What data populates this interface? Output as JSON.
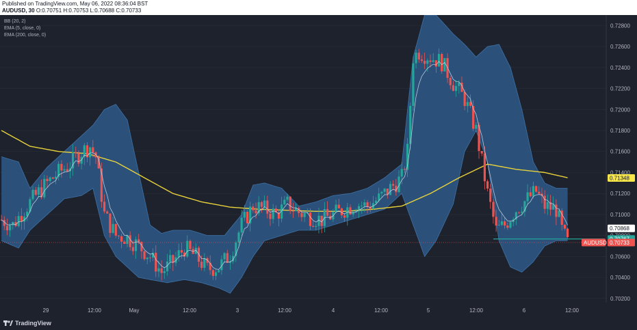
{
  "header": {
    "published": "Published on TradingView.com, May 06, 2022 08:36:04 BST",
    "symbol": "AUDUSD, 30",
    "ohlc": "O:0.70751 H:0.70753 L:0.70688 C:0.70733"
  },
  "indicators": [
    "BB (20, 2)",
    "EMA (5, close, 0)",
    "EMA (200, close, 0)"
  ],
  "footer": {
    "brand": "TradingView"
  },
  "colors": {
    "background": "#1e222d",
    "band": "#2f5e8e",
    "up": "#26a69a",
    "down": "#ef5350",
    "ema200": "#e8d23c",
    "ema5": "#c9d4e4",
    "tag_last": "#ef5350",
    "tag_ema200": "#f7e64a",
    "tag_green": "#26a69a"
  },
  "chart_data": {
    "type": "candlestick",
    "symbol": "AUDUSD",
    "timeframe": "30",
    "ylim": [
      0.7016,
      0.729
    ],
    "y_ticks": [
      "0.72800",
      "0.72600",
      "0.72400",
      "0.72200",
      "0.72000",
      "0.71800",
      "0.71600",
      "0.71400",
      "0.71200",
      "0.71000",
      "0.70800",
      "0.70600",
      "0.70400",
      "0.70200"
    ],
    "x_ticks": [
      "29",
      "12:00",
      "May",
      "12:00",
      "3",
      "12:00",
      "4",
      "12:00",
      "5",
      "12:00",
      "6",
      "12:00"
    ],
    "price_tags": [
      {
        "value": 0.71348,
        "label": "0.71348",
        "kind": "ema200"
      },
      {
        "value": 0.70868,
        "label": "0.70868",
        "kind": "ema5"
      },
      {
        "value": 0.70767,
        "label": "0.70767",
        "kind": "green"
      },
      {
        "value": 0.70733,
        "label": "0.70733",
        "kind": "last"
      }
    ],
    "last_label": "AUDUSD",
    "close_path": [
      [
        0,
        0.7095
      ],
      [
        4,
        0.709
      ],
      [
        8,
        0.7105
      ],
      [
        12,
        0.7118
      ],
      [
        16,
        0.713
      ],
      [
        20,
        0.714
      ],
      [
        24,
        0.7148
      ],
      [
        28,
        0.716
      ],
      [
        31,
        0.7165
      ],
      [
        33,
        0.7155
      ],
      [
        36,
        0.71
      ],
      [
        40,
        0.708
      ],
      [
        44,
        0.7078
      ],
      [
        48,
        0.707
      ],
      [
        52,
        0.706
      ],
      [
        56,
        0.7045
      ],
      [
        60,
        0.7055
      ],
      [
        64,
        0.7068
      ],
      [
        68,
        0.706
      ],
      [
        72,
        0.7048
      ],
      [
        76,
        0.705
      ],
      [
        80,
        0.7062
      ],
      [
        84,
        0.709
      ],
      [
        88,
        0.7108
      ],
      [
        92,
        0.7105
      ],
      [
        96,
        0.71
      ],
      [
        100,
        0.711
      ],
      [
        104,
        0.7102
      ],
      [
        108,
        0.7098
      ],
      [
        112,
        0.7095
      ],
      [
        116,
        0.71
      ],
      [
        120,
        0.7105
      ],
      [
        124,
        0.711
      ],
      [
        128,
        0.7108
      ],
      [
        132,
        0.7115
      ],
      [
        136,
        0.7125
      ],
      [
        140,
        0.7135
      ],
      [
        142,
        0.716
      ],
      [
        144,
        0.725
      ],
      [
        146,
        0.7255
      ],
      [
        150,
        0.725
      ],
      [
        154,
        0.7245
      ],
      [
        158,
        0.7225
      ],
      [
        162,
        0.721
      ],
      [
        166,
        0.718
      ],
      [
        170,
        0.712
      ],
      [
        173,
        0.7085
      ],
      [
        176,
        0.709
      ],
      [
        180,
        0.7105
      ],
      [
        184,
        0.7115
      ],
      [
        187,
        0.7122
      ],
      [
        190,
        0.7108
      ],
      [
        194,
        0.7105
      ],
      [
        196,
        0.7085
      ],
      [
        198,
        0.7073
      ]
    ],
    "ema200_path": [
      [
        0,
        0.718
      ],
      [
        10,
        0.7165
      ],
      [
        20,
        0.716
      ],
      [
        30,
        0.7158
      ],
      [
        40,
        0.715
      ],
      [
        50,
        0.7135
      ],
      [
        60,
        0.712
      ],
      [
        70,
        0.7112
      ],
      [
        80,
        0.7107
      ],
      [
        90,
        0.7105
      ],
      [
        100,
        0.7104
      ],
      [
        110,
        0.7103
      ],
      [
        120,
        0.7103
      ],
      [
        130,
        0.7105
      ],
      [
        140,
        0.7108
      ],
      [
        150,
        0.712
      ],
      [
        160,
        0.7135
      ],
      [
        170,
        0.7148
      ],
      [
        180,
        0.7143
      ],
      [
        190,
        0.714
      ],
      [
        198,
        0.7135
      ]
    ],
    "bb_upper_path": [
      [
        0,
        0.7155
      ],
      [
        6,
        0.715
      ],
      [
        10,
        0.7125
      ],
      [
        16,
        0.7145
      ],
      [
        22,
        0.716
      ],
      [
        28,
        0.7175
      ],
      [
        32,
        0.7185
      ],
      [
        36,
        0.72
      ],
      [
        40,
        0.7205
      ],
      [
        44,
        0.719
      ],
      [
        48,
        0.714
      ],
      [
        52,
        0.709
      ],
      [
        56,
        0.7082
      ],
      [
        60,
        0.7085
      ],
      [
        66,
        0.7085
      ],
      [
        72,
        0.708
      ],
      [
        78,
        0.708
      ],
      [
        84,
        0.71
      ],
      [
        88,
        0.7128
      ],
      [
        92,
        0.713
      ],
      [
        98,
        0.7125
      ],
      [
        104,
        0.7108
      ],
      [
        110,
        0.7112
      ],
      [
        116,
        0.7118
      ],
      [
        122,
        0.712
      ],
      [
        128,
        0.7125
      ],
      [
        134,
        0.7135
      ],
      [
        140,
        0.7148
      ],
      [
        144,
        0.725
      ],
      [
        148,
        0.729
      ],
      [
        152,
        0.729
      ],
      [
        158,
        0.7272
      ],
      [
        162,
        0.7262
      ],
      [
        166,
        0.725
      ],
      [
        170,
        0.726
      ],
      [
        174,
        0.7262
      ],
      [
        178,
        0.724
      ],
      [
        182,
        0.72
      ],
      [
        186,
        0.715
      ],
      [
        190,
        0.713
      ],
      [
        194,
        0.7125
      ],
      [
        198,
        0.7125
      ]
    ],
    "bb_lower_path": [
      [
        0,
        0.7075
      ],
      [
        6,
        0.7068
      ],
      [
        10,
        0.7085
      ],
      [
        16,
        0.71
      ],
      [
        22,
        0.7115
      ],
      [
        28,
        0.7118
      ],
      [
        32,
        0.7125
      ],
      [
        36,
        0.708
      ],
      [
        40,
        0.706
      ],
      [
        44,
        0.705
      ],
      [
        48,
        0.704
      ],
      [
        52,
        0.7038
      ],
      [
        58,
        0.7035
      ],
      [
        64,
        0.7038
      ],
      [
        70,
        0.7035
      ],
      [
        76,
        0.703
      ],
      [
        80,
        0.7025
      ],
      [
        84,
        0.704
      ],
      [
        88,
        0.706
      ],
      [
        92,
        0.7075
      ],
      [
        98,
        0.708
      ],
      [
        104,
        0.7085
      ],
      [
        110,
        0.7085
      ],
      [
        116,
        0.709
      ],
      [
        122,
        0.7095
      ],
      [
        128,
        0.71
      ],
      [
        134,
        0.7105
      ],
      [
        140,
        0.712
      ],
      [
        144,
        0.709
      ],
      [
        148,
        0.706
      ],
      [
        152,
        0.7075
      ],
      [
        158,
        0.711
      ],
      [
        162,
        0.716
      ],
      [
        166,
        0.718
      ],
      [
        170,
        0.715
      ],
      [
        174,
        0.7075
      ],
      [
        178,
        0.705
      ],
      [
        182,
        0.7045
      ],
      [
        186,
        0.7055
      ],
      [
        190,
        0.707
      ],
      [
        194,
        0.7075
      ],
      [
        198,
        0.7075
      ]
    ],
    "green_line": {
      "value": 0.70767,
      "from": 172,
      "to": 211
    }
  }
}
